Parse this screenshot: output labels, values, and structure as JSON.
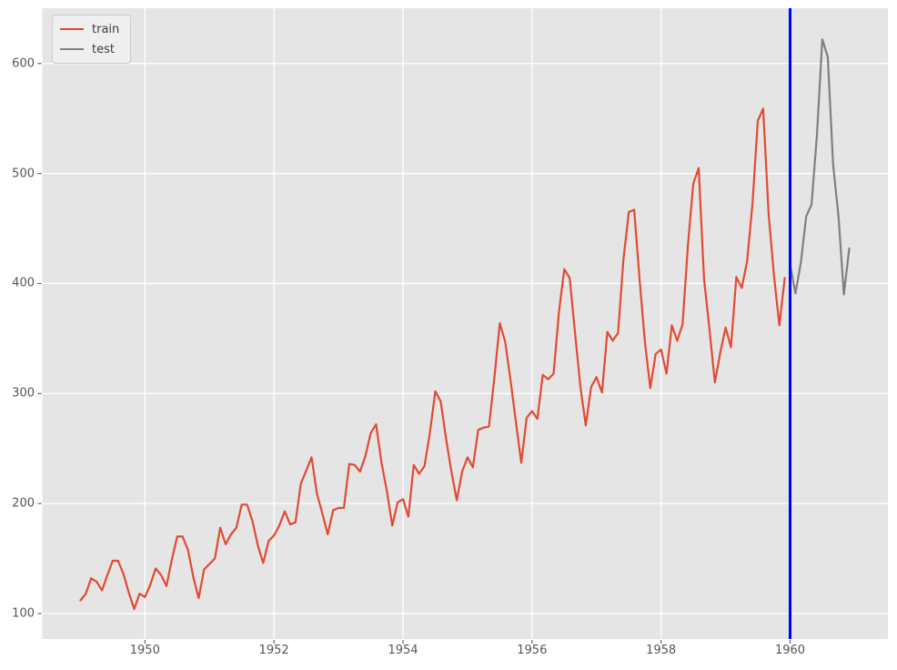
{
  "figure": {
    "background": "#ffffff",
    "plot_background": "#e5e5e5",
    "grid_color": "#ffffff",
    "tick_color": "#555555",
    "tick_label_color": "#555555"
  },
  "legend": {
    "position": "upper-left",
    "items": [
      {
        "label": "train",
        "color": "#e24a33"
      },
      {
        "label": "test",
        "color": "#808080"
      }
    ]
  },
  "chart_data": {
    "type": "line",
    "title": "",
    "xlabel": "",
    "ylabel": "",
    "grid": true,
    "legend_position": "upper-left",
    "x_ticks": [
      1950,
      1952,
      1954,
      1956,
      1958,
      1960
    ],
    "y_ticks": [
      100,
      200,
      300,
      400,
      500,
      600
    ],
    "xlim": [
      1948.409,
      1961.516
    ],
    "ylim": [
      76.8,
      650.3
    ],
    "x_unit": "year (monthly samples)",
    "series": [
      {
        "name": "train",
        "color": "#e24a33",
        "x_start": 1949.0,
        "x_step": 0.0833333,
        "values": [
          112,
          118,
          132,
          129,
          121,
          135,
          148,
          148,
          136,
          119,
          104,
          118,
          115,
          126,
          141,
          135,
          125,
          149,
          170,
          170,
          158,
          133,
          114,
          140,
          145,
          150,
          178,
          163,
          172,
          178,
          199,
          199,
          184,
          162,
          146,
          166,
          171,
          180,
          193,
          181,
          183,
          218,
          230,
          242,
          209,
          191,
          172,
          194,
          196,
          196,
          236,
          235,
          229,
          243,
          264,
          272,
          237,
          211,
          180,
          201,
          204,
          188,
          235,
          227,
          234,
          264,
          302,
          293,
          259,
          229,
          203,
          229,
          242,
          233,
          267,
          269,
          270,
          315,
          364,
          347,
          312,
          274,
          237,
          278,
          284,
          277,
          317,
          313,
          318,
          374,
          413,
          405,
          355,
          306,
          271,
          306,
          315,
          301,
          356,
          348,
          355,
          422,
          465,
          467,
          404,
          347,
          305,
          336,
          340,
          318,
          362,
          348,
          363,
          435,
          491,
          505,
          404,
          359,
          310,
          337,
          360,
          342,
          406,
          396,
          420,
          472,
          548,
          559,
          463,
          407,
          362,
          405
        ]
      },
      {
        "name": "test",
        "color": "#808080",
        "x_start": 1960.0,
        "x_step": 0.0833333,
        "values": [
          417,
          391,
          419,
          461,
          472,
          535,
          622,
          606,
          508,
          461,
          390,
          432
        ]
      }
    ],
    "vline": {
      "x": 1960.0,
      "color": "#0000ff"
    }
  }
}
